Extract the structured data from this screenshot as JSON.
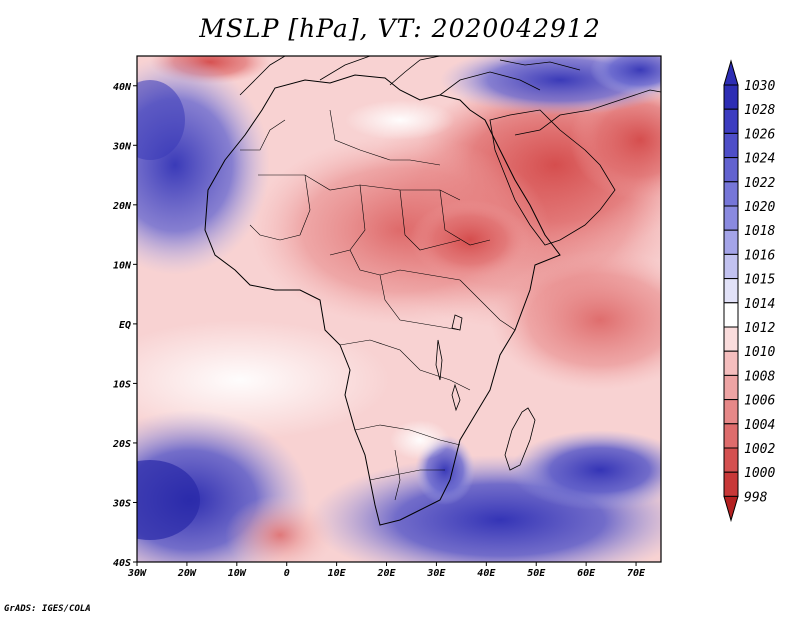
{
  "title": "MSLP [hPa], VT: 2020042912",
  "credit": "GrADS: IGES/COLA",
  "map": {
    "lon_range": [
      -30,
      75
    ],
    "lat_range": [
      -40,
      45
    ],
    "x_ticks": [
      {
        "lon": -30,
        "label": "30W"
      },
      {
        "lon": -20,
        "label": "20W"
      },
      {
        "lon": -10,
        "label": "10W"
      },
      {
        "lon": 0,
        "label": "0"
      },
      {
        "lon": 10,
        "label": "10E"
      },
      {
        "lon": 20,
        "label": "20E"
      },
      {
        "lon": 30,
        "label": "30E"
      },
      {
        "lon": 40,
        "label": "40E"
      },
      {
        "lon": 50,
        "label": "50E"
      },
      {
        "lon": 60,
        "label": "60E"
      },
      {
        "lon": 70,
        "label": "70E"
      }
    ],
    "y_ticks": [
      {
        "lat": 40,
        "label": "40N"
      },
      {
        "lat": 30,
        "label": "30N"
      },
      {
        "lat": 20,
        "label": "20N"
      },
      {
        "lat": 10,
        "label": "10N"
      },
      {
        "lat": 0,
        "label": "EQ"
      },
      {
        "lat": -10,
        "label": "10S"
      },
      {
        "lat": -20,
        "label": "20S"
      },
      {
        "lat": -30,
        "label": "30S"
      },
      {
        "lat": -40,
        "label": "40S"
      }
    ]
  },
  "colorbar": {
    "labels": [
      "1030",
      "1028",
      "1026",
      "1024",
      "1022",
      "1020",
      "1018",
      "1016",
      "1015",
      "1014",
      "1012",
      "1010",
      "1008",
      "1006",
      "1004",
      "1002",
      "1000",
      "998"
    ],
    "colors": [
      "#2d2db4",
      "#3c3cc0",
      "#4e4ec8",
      "#6262d0",
      "#7676d8",
      "#8a8ae0",
      "#a4a4e8",
      "#c2c2f0",
      "#e2e2f8",
      "#ffffff",
      "#fadcdc",
      "#f5bebe",
      "#eea4a4",
      "#e68888",
      "#de6c6c",
      "#d45050",
      "#c83838",
      "#b42020"
    ]
  }
}
